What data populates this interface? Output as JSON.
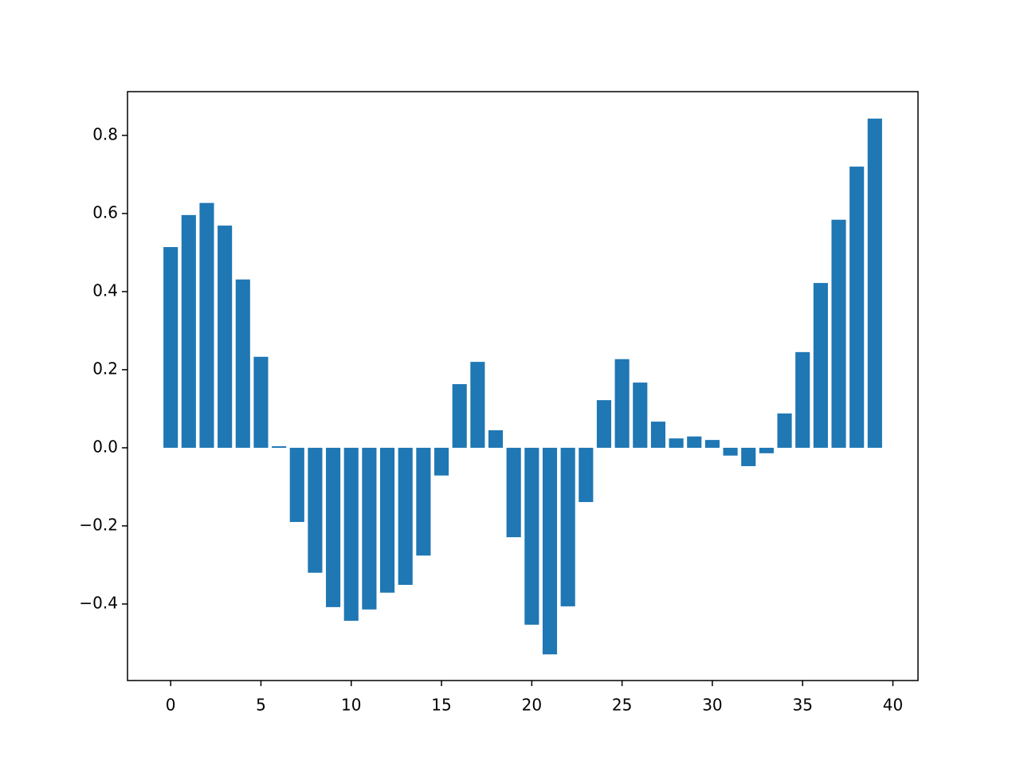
{
  "chart_data": {
    "type": "bar",
    "color": "#1f77b4",
    "x": [
      0,
      1,
      2,
      3,
      4,
      5,
      6,
      7,
      8,
      9,
      10,
      11,
      12,
      13,
      14,
      15,
      16,
      17,
      18,
      19,
      20,
      21,
      22,
      23,
      24,
      25,
      26,
      27,
      28,
      29,
      30,
      31,
      32,
      33,
      34,
      35,
      36,
      37,
      38,
      39
    ],
    "values": [
      0.514,
      0.596,
      0.627,
      0.569,
      0.431,
      0.233,
      0.004,
      -0.19,
      -0.32,
      -0.408,
      -0.443,
      -0.414,
      -0.371,
      -0.351,
      -0.276,
      -0.071,
      0.163,
      0.22,
      0.045,
      -0.229,
      -0.453,
      -0.529,
      -0.406,
      -0.139,
      0.122,
      0.227,
      0.167,
      0.067,
      0.024,
      0.029,
      0.02,
      -0.02,
      -0.047,
      -0.014,
      0.088,
      0.245,
      0.422,
      0.584,
      0.72,
      0.843
    ],
    "xlim": [
      -2.39,
      41.39
    ],
    "xticks": [
      0,
      5,
      10,
      15,
      20,
      25,
      30,
      35,
      40
    ],
    "ylim": [
      -0.596,
      0.912
    ],
    "yticks": [
      {
        "value": -0.4,
        "label": "−0.4"
      },
      {
        "value": -0.2,
        "label": "−0.2"
      },
      {
        "value": 0,
        "label": "0.0"
      },
      0.2,
      0.4,
      0.6,
      0.8
    ]
  }
}
